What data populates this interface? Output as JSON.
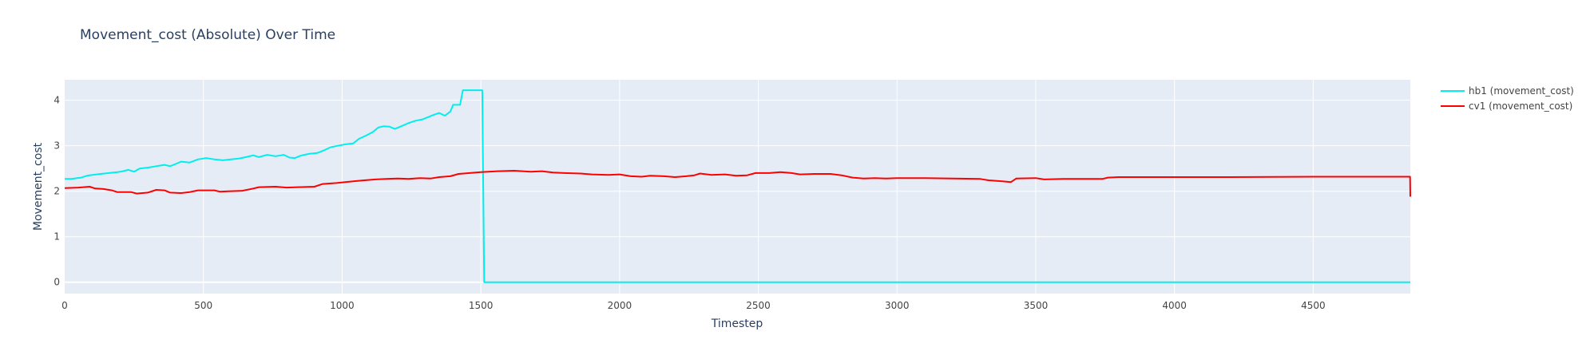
{
  "chart_data": {
    "type": "line",
    "title": "Movement_cost (Absolute) Over Time",
    "xlabel": "Timestep",
    "ylabel": "Movement_cost",
    "xlim": [
      0,
      4850
    ],
    "ylim": [
      -0.25,
      4.45
    ],
    "x_ticks": [
      0,
      500,
      1000,
      1500,
      2000,
      2500,
      3000,
      3500,
      4000,
      4500
    ],
    "y_ticks": [
      0,
      1,
      2,
      3,
      4
    ],
    "grid": true,
    "legend_position": "right",
    "plot_bg": "#e5ecf6",
    "series": [
      {
        "name": "hb1 (movement_cost)",
        "color": "#00eeee",
        "points": [
          [
            0,
            2.27
          ],
          [
            25,
            2.27
          ],
          [
            45,
            2.29
          ],
          [
            60,
            2.3
          ],
          [
            80,
            2.34
          ],
          [
            100,
            2.36
          ],
          [
            130,
            2.38
          ],
          [
            160,
            2.4
          ],
          [
            190,
            2.42
          ],
          [
            210,
            2.44
          ],
          [
            230,
            2.47
          ],
          [
            250,
            2.43
          ],
          [
            270,
            2.5
          ],
          [
            300,
            2.52
          ],
          [
            330,
            2.55
          ],
          [
            360,
            2.58
          ],
          [
            380,
            2.55
          ],
          [
            400,
            2.6
          ],
          [
            420,
            2.65
          ],
          [
            450,
            2.63
          ],
          [
            480,
            2.7
          ],
          [
            510,
            2.73
          ],
          [
            540,
            2.7
          ],
          [
            570,
            2.68
          ],
          [
            600,
            2.7
          ],
          [
            630,
            2.72
          ],
          [
            660,
            2.76
          ],
          [
            680,
            2.79
          ],
          [
            700,
            2.75
          ],
          [
            730,
            2.8
          ],
          [
            760,
            2.77
          ],
          [
            790,
            2.8
          ],
          [
            810,
            2.74
          ],
          [
            830,
            2.73
          ],
          [
            850,
            2.78
          ],
          [
            880,
            2.82
          ],
          [
            910,
            2.84
          ],
          [
            935,
            2.9
          ],
          [
            960,
            2.97
          ],
          [
            985,
            3.0
          ],
          [
            1010,
            3.03
          ],
          [
            1040,
            3.05
          ],
          [
            1060,
            3.15
          ],
          [
            1085,
            3.22
          ],
          [
            1110,
            3.3
          ],
          [
            1130,
            3.4
          ],
          [
            1150,
            3.43
          ],
          [
            1170,
            3.42
          ],
          [
            1190,
            3.37
          ],
          [
            1210,
            3.42
          ],
          [
            1240,
            3.5
          ],
          [
            1265,
            3.55
          ],
          [
            1290,
            3.58
          ],
          [
            1310,
            3.63
          ],
          [
            1330,
            3.68
          ],
          [
            1350,
            3.72
          ],
          [
            1370,
            3.66
          ],
          [
            1390,
            3.75
          ],
          [
            1400,
            3.9
          ],
          [
            1425,
            3.9
          ],
          [
            1435,
            4.22
          ],
          [
            1505,
            4.22
          ],
          [
            1512,
            0.0
          ],
          [
            4850,
            0.0
          ]
        ]
      },
      {
        "name": "cv1 (movement_cost)",
        "color": "#ff0000",
        "points": [
          [
            0,
            2.07
          ],
          [
            50,
            2.08
          ],
          [
            90,
            2.1
          ],
          [
            110,
            2.06
          ],
          [
            140,
            2.05
          ],
          [
            170,
            2.02
          ],
          [
            190,
            1.98
          ],
          [
            240,
            1.98
          ],
          [
            260,
            1.95
          ],
          [
            300,
            1.97
          ],
          [
            330,
            2.03
          ],
          [
            360,
            2.02
          ],
          [
            380,
            1.97
          ],
          [
            420,
            1.96
          ],
          [
            450,
            1.98
          ],
          [
            480,
            2.02
          ],
          [
            540,
            2.02
          ],
          [
            560,
            1.99
          ],
          [
            590,
            2.0
          ],
          [
            640,
            2.01
          ],
          [
            680,
            2.06
          ],
          [
            700,
            2.09
          ],
          [
            760,
            2.1
          ],
          [
            800,
            2.08
          ],
          [
            840,
            2.09
          ],
          [
            900,
            2.1
          ],
          [
            930,
            2.16
          ],
          [
            980,
            2.18
          ],
          [
            1040,
            2.22
          ],
          [
            1080,
            2.24
          ],
          [
            1120,
            2.26
          ],
          [
            1160,
            2.27
          ],
          [
            1200,
            2.28
          ],
          [
            1240,
            2.27
          ],
          [
            1280,
            2.29
          ],
          [
            1320,
            2.28
          ],
          [
            1350,
            2.31
          ],
          [
            1390,
            2.33
          ],
          [
            1420,
            2.38
          ],
          [
            1460,
            2.4
          ],
          [
            1500,
            2.42
          ],
          [
            1560,
            2.44
          ],
          [
            1620,
            2.45
          ],
          [
            1680,
            2.43
          ],
          [
            1720,
            2.44
          ],
          [
            1760,
            2.41
          ],
          [
            1800,
            2.4
          ],
          [
            1860,
            2.39
          ],
          [
            1900,
            2.37
          ],
          [
            1960,
            2.36
          ],
          [
            2000,
            2.37
          ],
          [
            2040,
            2.33
          ],
          [
            2080,
            2.32
          ],
          [
            2110,
            2.34
          ],
          [
            2160,
            2.33
          ],
          [
            2200,
            2.31
          ],
          [
            2240,
            2.33
          ],
          [
            2270,
            2.35
          ],
          [
            2290,
            2.39
          ],
          [
            2330,
            2.36
          ],
          [
            2380,
            2.37
          ],
          [
            2420,
            2.34
          ],
          [
            2460,
            2.35
          ],
          [
            2490,
            2.4
          ],
          [
            2540,
            2.4
          ],
          [
            2580,
            2.42
          ],
          [
            2620,
            2.4
          ],
          [
            2650,
            2.37
          ],
          [
            2700,
            2.38
          ],
          [
            2760,
            2.38
          ],
          [
            2800,
            2.35
          ],
          [
            2840,
            2.3
          ],
          [
            2880,
            2.28
          ],
          [
            2920,
            2.29
          ],
          [
            2960,
            2.28
          ],
          [
            3000,
            2.29
          ],
          [
            3100,
            2.29
          ],
          [
            3200,
            2.28
          ],
          [
            3300,
            2.27
          ],
          [
            3330,
            2.24
          ],
          [
            3380,
            2.22
          ],
          [
            3410,
            2.2
          ],
          [
            3430,
            2.28
          ],
          [
            3500,
            2.29
          ],
          [
            3530,
            2.26
          ],
          [
            3600,
            2.27
          ],
          [
            3740,
            2.27
          ],
          [
            3760,
            2.3
          ],
          [
            3800,
            2.31
          ],
          [
            4200,
            2.31
          ],
          [
            4500,
            2.32
          ],
          [
            4849,
            2.32
          ],
          [
            4850,
            1.88
          ]
        ]
      }
    ]
  }
}
